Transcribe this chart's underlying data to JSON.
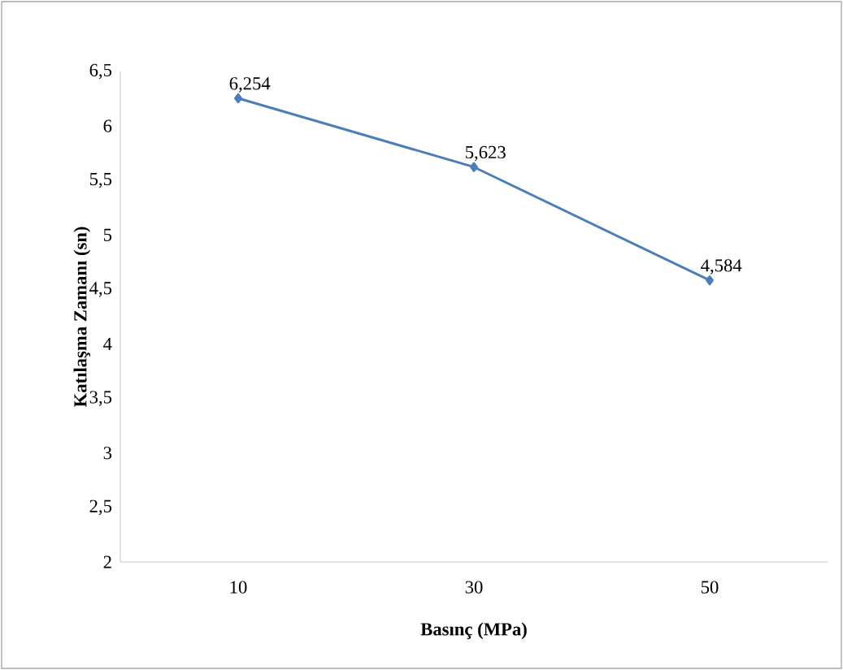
{
  "chart_data": {
    "type": "line",
    "xlabel": "Basınç (MPa)",
    "ylabel": "Katılaşma Zamanı (sn)",
    "categories": [
      "10",
      "30",
      "50"
    ],
    "series": [
      {
        "color": "#4a7ebb",
        "values": [
          6.254,
          5.623,
          4.584
        ]
      }
    ],
    "value_labels": [
      "6,254",
      "5,623",
      "4,584"
    ],
    "ylim": [
      2,
      6.5
    ],
    "yticks": [
      {
        "value": 2,
        "label": "2"
      },
      {
        "value": 2.5,
        "label": "2,5"
      },
      {
        "value": 3,
        "label": "3"
      },
      {
        "value": 3.5,
        "label": "3,5"
      },
      {
        "value": 4,
        "label": "4"
      },
      {
        "value": 4.5,
        "label": "4,5"
      },
      {
        "value": 5,
        "label": "5"
      },
      {
        "value": 5.5,
        "label": "5,5"
      },
      {
        "value": 6,
        "label": "6"
      },
      {
        "value": 6.5,
        "label": "6,5"
      }
    ],
    "marker": "diamond",
    "line_style": "solid",
    "grid": false
  }
}
